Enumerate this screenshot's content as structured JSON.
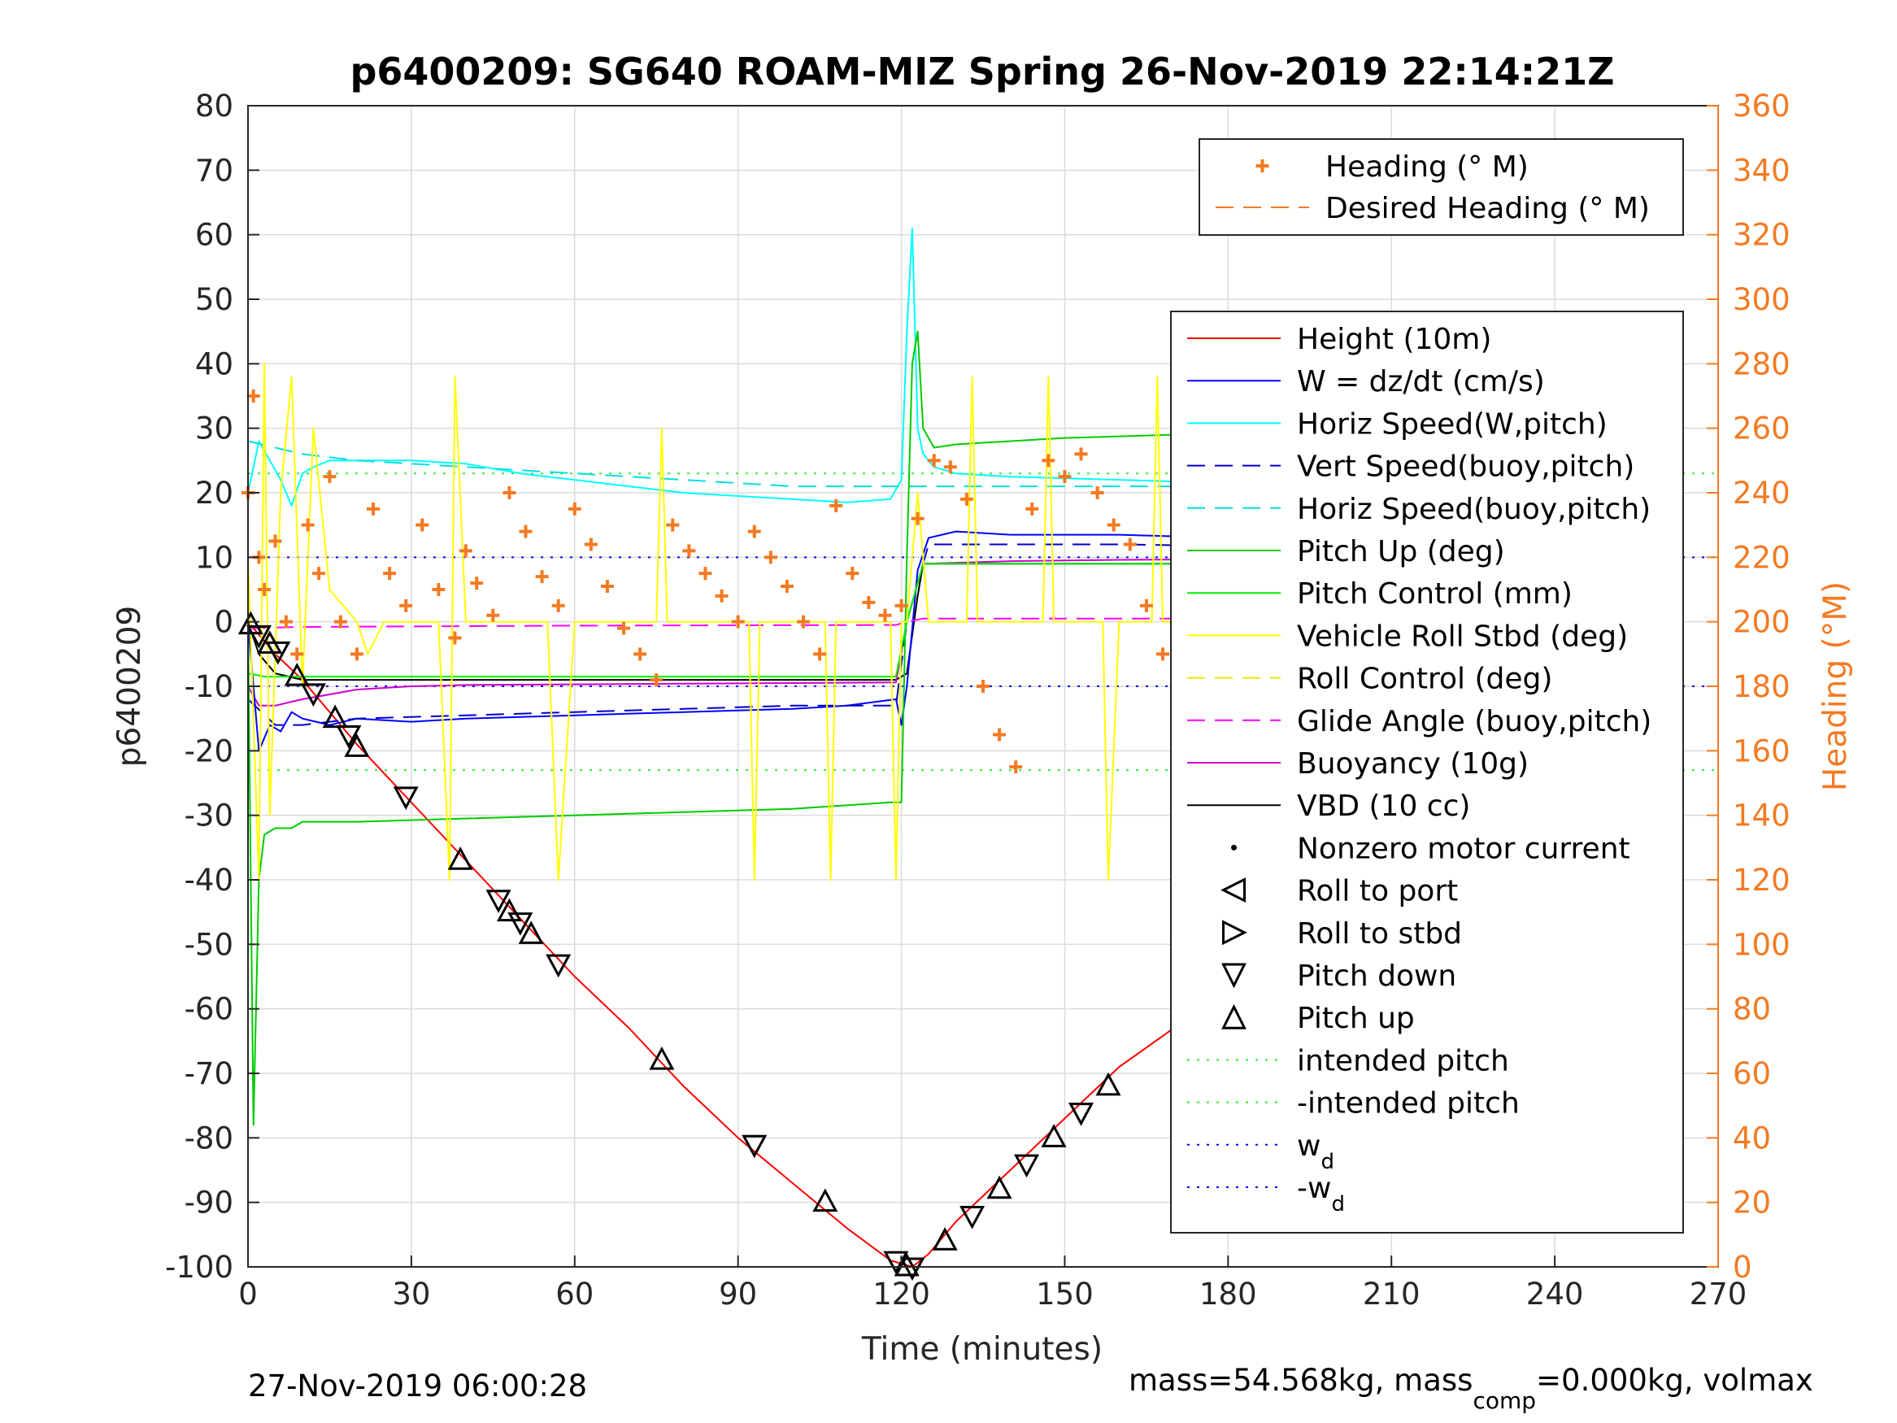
{
  "chart_data": {
    "type": "line",
    "title": "p6400209: SG640 ROAM-MIZ Spring 26-Nov-2019 22:14:21Z",
    "xlabel": "Time (minutes)",
    "ylabel_left": "p6400209",
    "ylabel_right": "Heading (°M)",
    "xlim": [
      0,
      270
    ],
    "ylim_left": [
      -100,
      80
    ],
    "ylim_right": [
      0,
      360
    ],
    "x_ticks": [
      0,
      30,
      60,
      90,
      120,
      150,
      180,
      210,
      240,
      270
    ],
    "y_ticks_left": [
      -100,
      -90,
      -80,
      -70,
      -60,
      -50,
      -40,
      -30,
      -20,
      -10,
      0,
      10,
      20,
      30,
      40,
      50,
      60,
      70,
      80
    ],
    "y_ticks_right": [
      0,
      20,
      40,
      60,
      80,
      100,
      120,
      140,
      160,
      180,
      200,
      220,
      240,
      260,
      280,
      300,
      320,
      340,
      360
    ],
    "grid": true,
    "footer_left": "27-Nov-2019 06:00:28",
    "footer_right": {
      "pre": "mass=54.568kg, mass",
      "sub": "comp",
      "post": "=0.000kg, volmax"
    },
    "colors": {
      "height": "#ff0000",
      "w": "#0000ff",
      "horiz_w": "#00ffff",
      "vert_buoy": "#0000c8",
      "horiz_buoy": "#00e0e0",
      "pitch_up": "#00cc00",
      "pitch_ctrl": "#00ee00",
      "roll": "#ffff00",
      "roll_ctrl": "#e8e800",
      "glide": "#ff00ff",
      "buoyancy": "#cc00cc",
      "vbd": "#000000",
      "heading": "#f37a22",
      "intended": "#33ee33",
      "wd": "#0000ff"
    },
    "legend_heading": [
      {
        "label": "Heading (° M)",
        "style": "plus",
        "color": "#f37a22"
      },
      {
        "label": "Desired Heading (° M)",
        "style": "dashed",
        "color": "#f37a22"
      }
    ],
    "legend_main": [
      {
        "label": "Height (10m)",
        "style": "solid",
        "color": "#ff0000"
      },
      {
        "label": "W = dz/dt (cm/s)",
        "style": "solid",
        "color": "#0000ff"
      },
      {
        "label": "Horiz Speed(W,pitch)",
        "style": "solid",
        "color": "#00ffff"
      },
      {
        "label": "Vert Speed(buoy,pitch)",
        "style": "dashed",
        "color": "#0000c8"
      },
      {
        "label": "Horiz Speed(buoy,pitch)",
        "style": "dashed",
        "color": "#00e0e0"
      },
      {
        "label": "Pitch Up (deg)",
        "style": "solid",
        "color": "#00cc00"
      },
      {
        "label": "Pitch Control (mm)",
        "style": "solid",
        "color": "#00ee00"
      },
      {
        "label": "Vehicle Roll Stbd (deg)",
        "style": "solid",
        "color": "#ffff00"
      },
      {
        "label": "Roll Control (deg)",
        "style": "dashed",
        "color": "#e8e800"
      },
      {
        "label": "Glide Angle (buoy,pitch)",
        "style": "dashed",
        "color": "#ff00ff"
      },
      {
        "label": "Buoyancy (10g)",
        "style": "solid",
        "color": "#cc00cc"
      },
      {
        "label": "VBD (10 cc)",
        "style": "solid",
        "color": "#000000"
      },
      {
        "label": "Nonzero motor current",
        "style": "dot",
        "color": "#000000"
      },
      {
        "label": "Roll to port",
        "style": "tri-left",
        "color": "#000000"
      },
      {
        "label": "Roll to stbd",
        "style": "tri-right",
        "color": "#000000"
      },
      {
        "label": "Pitch down",
        "style": "tri-down",
        "color": "#000000"
      },
      {
        "label": "Pitch up",
        "style": "tri-up",
        "color": "#000000"
      },
      {
        "label": "intended pitch",
        "style": "dotted",
        "color": "#33ee33"
      },
      {
        "label": "-intended pitch",
        "style": "dotted",
        "color": "#33ee33"
      },
      {
        "label": "w",
        "sub": "d",
        "style": "dotted",
        "color": "#0000ff"
      },
      {
        "label": "-w",
        "sub": "d",
        "style": "dotted",
        "color": "#0000ff"
      }
    ],
    "series": [
      {
        "name": "Height (10m)",
        "color": "#ff0000",
        "dash": "",
        "x": [
          0,
          5,
          10,
          20,
          30,
          40,
          50,
          60,
          70,
          80,
          90,
          100,
          110,
          118,
          122,
          125,
          130,
          140,
          150,
          160,
          170,
          180,
          190,
          200,
          210,
          220,
          230,
          240,
          250,
          258
        ],
        "y": [
          0,
          -5,
          -9,
          -19,
          -28,
          -37,
          -46,
          -55,
          -63,
          -72,
          -80,
          -87,
          -94,
          -99,
          -100,
          -98,
          -93,
          -85,
          -77,
          -69,
          -63,
          -55,
          -46,
          -38,
          -30,
          -23,
          -16,
          -10,
          -4,
          0
        ]
      },
      {
        "name": "VBD (10 cc)",
        "color": "#000000",
        "dash": "",
        "x": [
          0,
          2,
          5,
          10,
          20,
          40,
          60,
          80,
          100,
          119,
          121,
          123,
          124,
          140,
          160,
          200,
          240,
          258
        ],
        "y": [
          0,
          -5,
          -8,
          -9,
          -9,
          -9,
          -9,
          -9,
          -9,
          -9,
          -8,
          4,
          9,
          9,
          9,
          9,
          9,
          9
        ]
      },
      {
        "name": "Buoyancy (10g)",
        "color": "#cc00cc",
        "dash": "",
        "x": [
          0,
          2,
          5,
          10,
          20,
          30,
          40,
          60,
          80,
          100,
          119,
          121,
          124,
          140,
          160,
          200,
          230,
          240,
          250,
          258
        ],
        "y": [
          -10,
          -13,
          -13,
          -12,
          -10.5,
          -10,
          -9.8,
          -9.7,
          -9.6,
          -9.5,
          -9.4,
          0,
          9,
          9.4,
          9.6,
          9.8,
          9.5,
          8.5,
          7.5,
          7
        ]
      },
      {
        "name": "W = dz/dt (cm/s)",
        "color": "#0000ff",
        "dash": "",
        "x": [
          0,
          2,
          4,
          6,
          8,
          10,
          15,
          20,
          30,
          40,
          60,
          80,
          100,
          110,
          119,
          120,
          121,
          123,
          125,
          130,
          140,
          160,
          180,
          200,
          220,
          240,
          250,
          258
        ],
        "y": [
          0,
          -20,
          -16,
          -17,
          -14,
          -15,
          -16,
          -15,
          -15.5,
          -15,
          -14.5,
          -14,
          -13.5,
          -13,
          -12,
          -16,
          -10,
          8,
          13,
          14,
          13.5,
          13.5,
          13,
          12.5,
          12,
          11,
          10,
          9
        ]
      },
      {
        "name": "Vert Speed(buoy,pitch)",
        "color": "#0000c8",
        "dash": "22,12",
        "x": [
          0,
          5,
          10,
          20,
          40,
          60,
          80,
          100,
          119,
          121,
          125,
          140,
          160,
          200,
          240,
          258
        ],
        "y": [
          -12,
          -16,
          -16,
          -15,
          -14.5,
          -14,
          -13.5,
          -13,
          -13,
          0,
          12,
          12,
          12,
          11.5,
          11,
          10
        ]
      },
      {
        "name": "Horiz Speed(W,pitch)",
        "color": "#00ffff",
        "dash": "",
        "x": [
          0,
          2,
          4,
          6,
          8,
          10,
          12,
          15,
          20,
          30,
          40,
          50,
          60,
          70,
          80,
          90,
          100,
          110,
          118,
          120,
          121,
          122,
          123,
          124,
          126,
          130,
          140,
          160,
          180,
          200,
          220,
          240,
          258
        ],
        "y": [
          20,
          28,
          25,
          22,
          18,
          23,
          24,
          25,
          25,
          25,
          24.5,
          23,
          22,
          21,
          20,
          19.5,
          19,
          18.5,
          19,
          22,
          45,
          61,
          30,
          26,
          24,
          23,
          22.5,
          22,
          21.5,
          21.5,
          21,
          20,
          19
        ]
      },
      {
        "name": "Horiz Speed(buoy,pitch)",
        "color": "#00e0e0",
        "dash": "22,12",
        "x": [
          0,
          5,
          10,
          20,
          40,
          60,
          80,
          100,
          119,
          121,
          125,
          140,
          160,
          200,
          240,
          258
        ],
        "y": [
          28,
          27,
          26,
          25,
          24,
          23,
          22,
          21,
          21,
          21,
          21,
          21,
          21,
          21,
          20,
          20
        ]
      },
      {
        "name": "Pitch Up (deg)",
        "color": "#00cc00",
        "dash": "",
        "x": [
          0,
          1,
          2,
          3,
          5,
          8,
          10,
          20,
          40,
          60,
          80,
          100,
          118,
          120,
          121,
          122,
          123,
          124,
          126,
          130,
          150,
          170,
          180,
          200,
          220,
          240,
          250,
          258
        ],
        "y": [
          0,
          -78,
          -40,
          -33,
          -32,
          -32,
          -31,
          -31,
          -30.5,
          -30,
          -29.5,
          -29,
          -28,
          -28,
          10,
          40,
          45,
          30,
          27,
          27.5,
          28.5,
          29,
          29,
          28.5,
          28,
          27,
          26,
          25
        ]
      },
      {
        "name": "Pitch Control (mm)",
        "color": "#00ee00",
        "dash": "",
        "x": [
          0,
          3,
          10,
          40,
          80,
          119,
          121,
          124,
          150,
          200,
          258
        ],
        "y": [
          -8,
          -8.5,
          -8.5,
          -8.5,
          -8.5,
          -8.5,
          0,
          9,
          9,
          9,
          9
        ]
      },
      {
        "name": "Glide Angle (buoy,pitch)",
        "color": "#ff00ff",
        "dash": "22,12",
        "x": [
          0,
          10,
          60,
          119,
          121,
          124,
          180,
          258
        ],
        "y": [
          -1,
          -0.8,
          -0.6,
          -0.5,
          0,
          0.5,
          0.5,
          0.5
        ]
      },
      {
        "name": "Vehicle Roll Stbd (deg)",
        "color": "#ffff00",
        "dash": "",
        "x": [
          0,
          2,
          3,
          4,
          6,
          8,
          10,
          12,
          15,
          20,
          22,
          25,
          28,
          30,
          35,
          37,
          38,
          40,
          45,
          50,
          55,
          57,
          60,
          75,
          76,
          77,
          80,
          85,
          92,
          93,
          94,
          96,
          100,
          106,
          107,
          108,
          112,
          118,
          119,
          120,
          121,
          123,
          125,
          130,
          132,
          133,
          134,
          140,
          146,
          147,
          148,
          155,
          157,
          158,
          160,
          166,
          167,
          168,
          175,
          176,
          177,
          180,
          190,
          200,
          210,
          211,
          212,
          230,
          231,
          232,
          240,
          250,
          252,
          254,
          256,
          258
        ],
        "y": [
          10,
          -40,
          40,
          -30,
          20,
          38,
          -10,
          30,
          5,
          0,
          -5,
          0,
          0,
          0,
          0,
          -40,
          38,
          0,
          0,
          0,
          0,
          -40,
          0,
          0,
          30,
          0,
          0,
          0,
          0,
          -40,
          0,
          0,
          0,
          0,
          -40,
          0,
          0,
          0,
          -40,
          0,
          0,
          20,
          0,
          0,
          0,
          38,
          0,
          0,
          0,
          38,
          0,
          0,
          0,
          -40,
          0,
          0,
          38,
          0,
          0,
          35,
          0,
          0,
          0,
          0,
          0,
          -40,
          0,
          0,
          38,
          0,
          0,
          0,
          -40,
          30,
          -30,
          0
        ]
      },
      {
        "name": "Heading (° M)",
        "color": "#f37a22",
        "marker": "plus",
        "x": [
          0,
          1,
          2,
          3,
          5,
          7,
          9,
          11,
          13,
          15,
          17,
          20,
          23,
          26,
          29,
          32,
          35,
          38,
          40,
          42,
          45,
          48,
          51,
          54,
          57,
          60,
          63,
          66,
          69,
          72,
          75,
          78,
          81,
          84,
          87,
          90,
          93,
          96,
          99,
          102,
          105,
          108,
          111,
          114,
          117,
          120,
          123,
          126,
          129,
          132,
          135,
          138,
          141,
          144,
          147,
          150,
          153,
          156,
          159,
          162,
          165,
          168,
          171,
          174,
          177,
          180,
          183,
          186,
          189,
          192,
          195,
          198,
          201,
          204,
          207,
          210,
          213,
          216,
          219,
          222,
          225,
          228,
          231,
          234,
          237,
          240,
          243,
          246,
          249,
          252,
          255,
          258
        ],
        "y": [
          240,
          270,
          220,
          210,
          225,
          200,
          190,
          230,
          215,
          245,
          200,
          190,
          235,
          215,
          205,
          230,
          210,
          195,
          222,
          212,
          202,
          240,
          228,
          214,
          205,
          235,
          224,
          211,
          198,
          190,
          182,
          230,
          222,
          215,
          208,
          200,
          228,
          220,
          211,
          200,
          190,
          236,
          215,
          206,
          202,
          205,
          232,
          250,
          248,
          238,
          180,
          165,
          155,
          235,
          250,
          245,
          252,
          240,
          230,
          224,
          205,
          190,
          180,
          165,
          195,
          230,
          218,
          212,
          222,
          226,
          230,
          240,
          236,
          228,
          226,
          228,
          222,
          216,
          224,
          220,
          214,
          210,
          228,
          212,
          196,
          224,
          215,
          205,
          285,
          270,
          200,
          205
        ]
      }
    ],
    "reference_lines": [
      {
        "name": "intended pitch",
        "y": 23,
        "color": "#33ee33",
        "dash": "3,9"
      },
      {
        "name": "-intended pitch",
        "y": -23,
        "color": "#33ee33",
        "dash": "3,9"
      },
      {
        "name": "w_d",
        "y": 10,
        "color": "#0000ff",
        "dash": "3,9"
      },
      {
        "name": "-w_d",
        "y": -10,
        "color": "#0000ff",
        "dash": "3,9"
      }
    ],
    "markers_triangles": {
      "x": [
        0.5,
        2,
        4,
        5.5,
        9,
        12,
        16,
        18.5,
        20,
        29,
        39,
        46,
        48,
        50,
        52,
        57,
        76,
        93,
        106,
        119,
        121,
        122,
        128,
        133,
        138,
        143,
        148,
        153,
        158,
        175,
        190,
        192,
        194,
        196,
        198,
        200,
        203,
        206,
        210,
        212,
        216,
        218,
        220,
        224,
        228,
        232,
        235,
        238,
        240,
        242,
        244,
        250,
        254,
        256,
        258
      ],
      "y": [
        -0.5,
        -2,
        -3.5,
        -4.5,
        -8.5,
        -11,
        -15,
        -17.5,
        -19.5,
        -27,
        -37,
        -43,
        -45,
        -46.5,
        -48.5,
        -53,
        -68,
        -81,
        -90,
        -99,
        -100,
        -100,
        -96,
        -92,
        -88,
        -84,
        -80,
        -76,
        -72,
        -58,
        -46,
        -44,
        -42,
        -40,
        -38,
        -36,
        -33.5,
        -31,
        -28,
        -26.5,
        -23.5,
        -22,
        -20.5,
        -18,
        -15,
        -12.5,
        -10.5,
        -8.5,
        -7,
        -5.5,
        -4,
        -3,
        -1.5,
        -0.8,
        -0.2
      ]
    }
  }
}
